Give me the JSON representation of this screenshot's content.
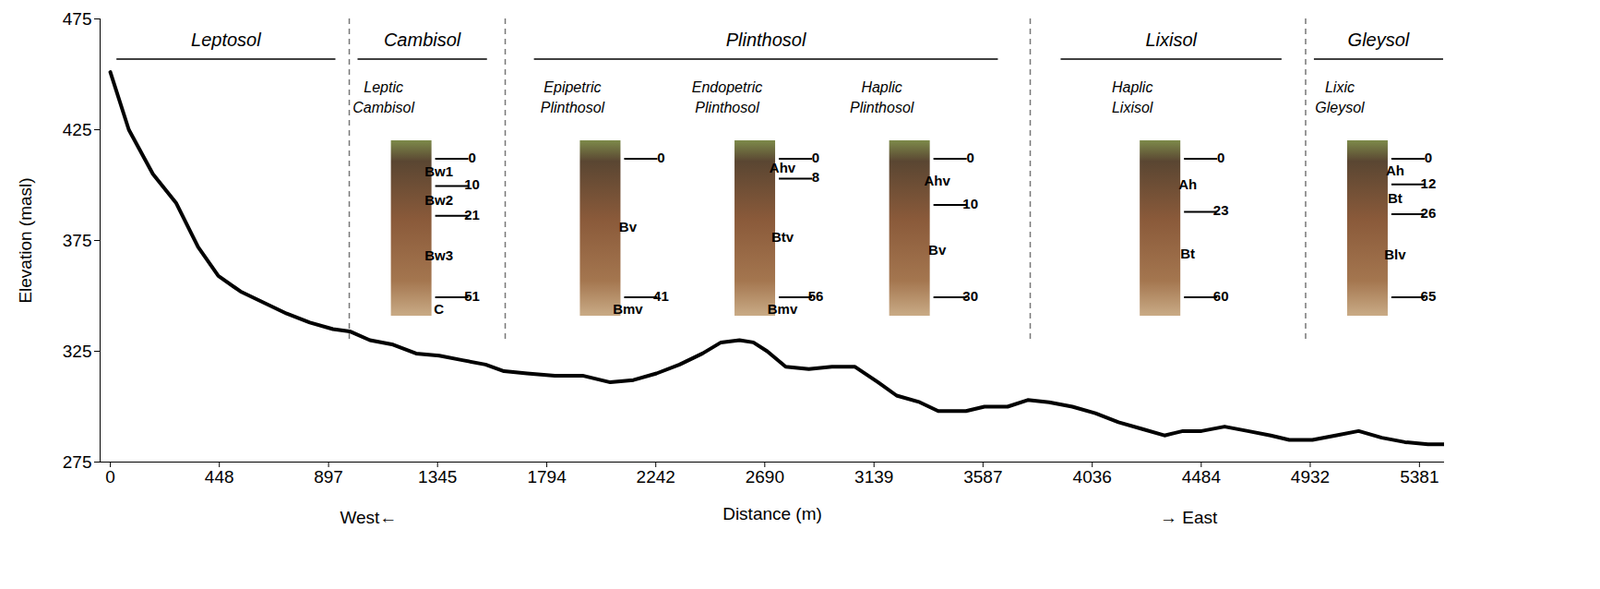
{
  "chart_data": {
    "type": "line",
    "xlabel": "Distance (m)",
    "ylabel": "Elevation (masl)",
    "annotations": [
      "West←",
      "→ East"
    ],
    "color": "#000000",
    "grid": false,
    "x": [
      0,
      76,
      175,
      270,
      361,
      444,
      535,
      630,
      725,
      820,
      915,
      984,
      1067,
      1162,
      1257,
      1352,
      1447,
      1542,
      1618,
      1713,
      1827,
      1941,
      2055,
      2150,
      2245,
      2340,
      2434,
      2510,
      2586,
      2643,
      2700,
      2776,
      2871,
      2966,
      3061,
      3156,
      3232,
      3327,
      3403,
      3517,
      3593,
      3688,
      3771,
      3859,
      3954,
      4049,
      4144,
      4239,
      4333,
      4409,
      4485,
      4580,
      4675,
      4770,
      4846,
      4941,
      5036,
      5131,
      5226,
      5321,
      5416,
      5484
    ],
    "values": [
      451,
      425,
      405,
      392,
      372,
      359,
      352,
      347,
      342,
      338,
      335,
      334,
      330,
      328,
      324,
      323,
      321,
      319,
      316,
      315,
      314,
      314,
      311,
      312,
      315,
      319,
      324,
      329,
      330,
      329,
      325,
      318,
      317,
      318,
      318,
      311,
      305,
      302,
      298,
      298,
      300,
      300,
      303,
      302,
      300,
      297,
      293,
      290,
      287,
      289,
      289,
      291,
      289,
      287,
      285,
      285,
      287,
      289,
      286,
      284,
      283,
      283
    ],
    "xlim": [
      -42,
      5484
    ],
    "xticks": [
      0,
      448,
      897,
      1345,
      1794,
      2242,
      2690,
      3139,
      3587,
      4036,
      4484,
      4932,
      5381
    ],
    "ylim": [
      275,
      475
    ],
    "yticks": [
      275,
      325,
      375,
      425,
      475
    ],
    "boundaries": [
      984,
      1625,
      3783,
      4915
    ],
    "soil_groups": [
      {
        "name": "Leptosol",
        "start": 27,
        "end": 927,
        "profiles": []
      },
      {
        "name": "Cambisol",
        "start": 1018,
        "end": 1550,
        "profiles": [
          {
            "name": "Leptic Cambisol",
            "horizons": [
              "Bw1",
              "Bw2",
              "Bw3",
              "C"
            ],
            "depths": [
              0,
              10,
              21,
              51
            ]
          }
        ]
      },
      {
        "name": "Plinthosol",
        "start": 1743,
        "end": 3650,
        "profiles": [
          {
            "name": "Epipetric Plinthosol",
            "horizons": [
              "Bv",
              "Bmv"
            ],
            "depths": [
              0,
              41
            ]
          },
          {
            "name": "Endopetric Plinthosol",
            "horizons": [
              "Ahv",
              "Btv",
              "Bmv"
            ],
            "depths": [
              0,
              8,
              56
            ]
          },
          {
            "name": "Haplic Plinthosol",
            "horizons": [
              "Ahv",
              "Bv"
            ],
            "depths": [
              0,
              10,
              30
            ]
          }
        ]
      },
      {
        "name": "Lixisol",
        "start": 3908,
        "end": 4816,
        "profiles": [
          {
            "name": "Haplic Lixisol",
            "horizons": [
              "Ah",
              "Bt"
            ],
            "depths": [
              0,
              23,
              60
            ]
          }
        ]
      },
      {
        "name": "Gleysol",
        "start": 4949,
        "end": 5480,
        "profiles": [
          {
            "name": "Lixic Gleysol",
            "horizons": [
              "Ah",
              "Bt",
              "Blv"
            ],
            "depths": [
              0,
              12,
              26,
              65
            ]
          }
        ]
      }
    ]
  }
}
